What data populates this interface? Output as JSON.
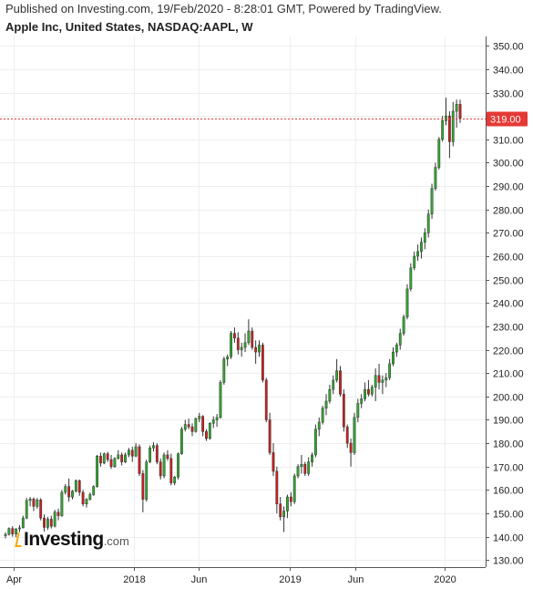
{
  "header": {
    "published": "Published on Investing.com, 19/Feb/2020 - 8:28:01 GMT, Powered by TradingView.",
    "symbol": "Apple Inc, United States, NASDAQ:AAPL, W"
  },
  "logo": {
    "brand": "Investing",
    "suffix": ".com"
  },
  "last_price_label": "319.00",
  "colors": {
    "up": "#2eaa2e",
    "down": "#cc1f1f",
    "price_line": "#e53935",
    "grid": "#eeeeee",
    "axis": "#555555"
  },
  "chart_data": {
    "type": "candlestick",
    "title": "Apple Inc, United States, NASDAQ:AAPL, W",
    "timeframe": "W",
    "ylim": [
      127,
      354
    ],
    "y_ticks": [
      130,
      140,
      150,
      160,
      170,
      180,
      190,
      200,
      210,
      220,
      230,
      240,
      250,
      260,
      270,
      280,
      290,
      300,
      310,
      320,
      330,
      340,
      350
    ],
    "x_ticks": [
      "Apr",
      "2018",
      "Jun",
      "2019",
      "Jun",
      "2020"
    ],
    "last_price": 319.0,
    "grid": true,
    "points": [
      [
        140.5,
        141.8,
        139.3,
        141.0
      ],
      [
        141.0,
        144.0,
        140.5,
        143.5
      ],
      [
        143.5,
        144.5,
        140.0,
        141.2
      ],
      [
        141.2,
        143.6,
        139.8,
        143.4
      ],
      [
        143.4,
        145.0,
        142.0,
        143.8
      ],
      [
        143.8,
        149.0,
        143.6,
        148.0
      ],
      [
        148.0,
        156.6,
        147.5,
        155.5
      ],
      [
        155.5,
        157.0,
        153.0,
        156.1
      ],
      [
        156.1,
        156.8,
        151.0,
        153.0
      ],
      [
        153.0,
        156.5,
        152.0,
        155.8
      ],
      [
        155.8,
        156.5,
        147.0,
        148.0
      ],
      [
        148.0,
        149.5,
        142.2,
        144.0
      ],
      [
        144.0,
        148.5,
        143.0,
        147.5
      ],
      [
        147.5,
        149.0,
        143.5,
        144.5
      ],
      [
        144.5,
        151.5,
        144.0,
        150.5
      ],
      [
        150.5,
        152.0,
        147.0,
        149.0
      ],
      [
        149.0,
        160.0,
        148.5,
        159.0
      ],
      [
        159.0,
        162.5,
        158.0,
        161.5
      ],
      [
        161.5,
        164.9,
        155.0,
        157.0
      ],
      [
        157.0,
        160.0,
        156.0,
        159.5
      ],
      [
        159.5,
        164.5,
        159.0,
        164.0
      ],
      [
        164.0,
        164.5,
        157.5,
        159.0
      ],
      [
        159.0,
        160.0,
        153.0,
        154.0
      ],
      [
        154.0,
        156.5,
        152.5,
        156.0
      ],
      [
        156.0,
        159.0,
        155.5,
        158.0
      ],
      [
        158.0,
        162.0,
        157.5,
        161.5
      ],
      [
        161.5,
        175.0,
        161.0,
        174.5
      ],
      [
        174.5,
        176.0,
        170.0,
        171.5
      ],
      [
        171.5,
        176.0,
        171.0,
        175.5
      ],
      [
        175.5,
        176.3,
        172.0,
        173.0
      ],
      [
        173.0,
        175.0,
        169.0,
        170.0
      ],
      [
        170.0,
        174.0,
        169.5,
        173.5
      ],
      [
        173.5,
        177.0,
        173.0,
        175.0
      ],
      [
        175.0,
        176.0,
        170.5,
        172.0
      ],
      [
        172.0,
        176.0,
        171.5,
        175.0
      ],
      [
        175.0,
        178.0,
        174.0,
        177.0
      ],
      [
        177.0,
        178.5,
        172.0,
        174.5
      ],
      [
        174.5,
        180.0,
        174.0,
        178.5
      ],
      [
        178.5,
        179.5,
        166.0,
        167.0
      ],
      [
        167.0,
        168.5,
        150.4,
        156.0
      ],
      [
        156.0,
        173.0,
        155.0,
        172.0
      ],
      [
        172.0,
        179.0,
        171.5,
        178.0
      ],
      [
        178.0,
        180.5,
        176.5,
        179.0
      ],
      [
        179.0,
        180.0,
        171.0,
        172.0
      ],
      [
        172.0,
        173.5,
        164.5,
        166.0
      ],
      [
        166.0,
        176.0,
        165.0,
        175.0
      ],
      [
        175.0,
        177.0,
        172.5,
        173.5
      ],
      [
        173.5,
        175.5,
        162.0,
        163.0
      ],
      [
        163.0,
        166.0,
        162.0,
        165.5
      ],
      [
        165.5,
        176.0,
        164.5,
        175.5
      ],
      [
        175.5,
        187.0,
        175.0,
        186.0
      ],
      [
        186.0,
        190.0,
        185.0,
        188.0
      ],
      [
        188.0,
        190.5,
        186.0,
        187.0
      ],
      [
        187.0,
        188.5,
        183.0,
        185.0
      ],
      [
        185.0,
        191.0,
        184.5,
        190.5
      ],
      [
        190.5,
        193.0,
        189.0,
        191.5
      ],
      [
        191.5,
        192.0,
        183.0,
        185.0
      ],
      [
        185.0,
        186.0,
        181.0,
        182.0
      ],
      [
        182.0,
        189.0,
        181.5,
        188.5
      ],
      [
        188.5,
        191.5,
        186.5,
        190.0
      ],
      [
        190.0,
        192.5,
        187.0,
        191.0
      ],
      [
        191.0,
        207.0,
        190.5,
        206.0
      ],
      [
        206.0,
        217.0,
        205.0,
        216.0
      ],
      [
        216.0,
        218.0,
        213.0,
        217.0
      ],
      [
        217.0,
        228.0,
        216.0,
        227.0
      ],
      [
        227.0,
        229.5,
        223.0,
        225.0
      ],
      [
        225.0,
        227.5,
        218.0,
        220.0
      ],
      [
        220.0,
        223.0,
        217.0,
        221.0
      ],
      [
        221.0,
        227.0,
        219.0,
        223.0
      ],
      [
        223.0,
        233.0,
        222.0,
        228.0
      ],
      [
        228.0,
        229.5,
        220.0,
        221.0
      ],
      [
        221.0,
        224.0,
        214.0,
        219.0
      ],
      [
        219.0,
        224.0,
        217.0,
        222.0
      ],
      [
        222.0,
        223.0,
        206.0,
        207.0
      ],
      [
        207.0,
        208.0,
        189.0,
        190.0
      ],
      [
        190.0,
        193.0,
        175.0,
        176.0
      ],
      [
        176.0,
        180.0,
        166.0,
        168.0
      ],
      [
        168.0,
        170.0,
        150.0,
        154.0
      ],
      [
        154.0,
        157.0,
        147.0,
        148.5
      ],
      [
        148.5,
        153.0,
        142.0,
        151.0
      ],
      [
        151.0,
        158.0,
        148.0,
        157.0
      ],
      [
        157.0,
        159.0,
        153.0,
        155.0
      ],
      [
        155.0,
        167.0,
        154.0,
        166.0
      ],
      [
        166.0,
        171.0,
        165.0,
        170.0
      ],
      [
        170.0,
        175.0,
        167.0,
        171.0
      ],
      [
        171.0,
        172.0,
        166.0,
        167.0
      ],
      [
        167.0,
        174.0,
        166.0,
        172.0
      ],
      [
        172.0,
        176.0,
        170.0,
        175.0
      ],
      [
        175.0,
        188.0,
        174.0,
        186.0
      ],
      [
        186.0,
        191.0,
        183.0,
        189.0
      ],
      [
        189.0,
        196.0,
        188.0,
        195.0
      ],
      [
        195.0,
        201.0,
        192.0,
        198.0
      ],
      [
        198.0,
        205.0,
        197.0,
        203.0
      ],
      [
        203.0,
        209.0,
        201.0,
        207.0
      ],
      [
        207.0,
        216.0,
        206.0,
        211.0
      ],
      [
        211.0,
        213.0,
        200.0,
        201.0
      ],
      [
        201.0,
        203.0,
        185.0,
        187.0
      ],
      [
        187.0,
        188.0,
        178.0,
        180.0
      ],
      [
        180.0,
        182.0,
        170.0,
        176.0
      ],
      [
        176.0,
        193.0,
        175.0,
        191.0
      ],
      [
        191.0,
        199.0,
        189.0,
        197.0
      ],
      [
        197.0,
        201.0,
        195.0,
        199.0
      ],
      [
        199.0,
        206.0,
        198.0,
        203.0
      ],
      [
        203.0,
        207.0,
        200.0,
        201.0
      ],
      [
        201.0,
        205.0,
        200.0,
        204.0
      ],
      [
        204.0,
        212.0,
        198.0,
        209.0
      ],
      [
        209.0,
        214.0,
        203.0,
        206.0
      ],
      [
        206.0,
        209.0,
        201.0,
        207.0
      ],
      [
        207.0,
        210.0,
        204.0,
        208.0
      ],
      [
        208.0,
        216.0,
        207.0,
        214.0
      ],
      [
        214.0,
        221.0,
        213.0,
        219.0
      ],
      [
        219.0,
        223.0,
        217.0,
        222.0
      ],
      [
        222.0,
        229.0,
        220.0,
        227.0
      ],
      [
        227.0,
        235.0,
        226.0,
        234.0
      ],
      [
        234.0,
        248.0,
        233.0,
        246.0
      ],
      [
        246.0,
        257.0,
        245.0,
        255.0
      ],
      [
        255.0,
        262.0,
        254.0,
        260.0
      ],
      [
        260.0,
        265.0,
        258.0,
        262.0
      ],
      [
        262.0,
        268.0,
        259.0,
        266.0
      ],
      [
        266.0,
        272.0,
        263.0,
        270.0
      ],
      [
        270.0,
        280.0,
        268.0,
        278.0
      ],
      [
        278.0,
        291.0,
        276.0,
        289.0
      ],
      [
        289.0,
        300.0,
        288.0,
        298.0
      ],
      [
        298.0,
        311.0,
        297.0,
        310.0
      ],
      [
        310.0,
        320.0,
        309.0,
        318.0
      ],
      [
        318.0,
        327.8,
        316.0,
        320.0
      ],
      [
        320.0,
        322.0,
        302.0,
        309.0
      ],
      [
        309.0,
        326.0,
        307.0,
        322.0
      ],
      [
        322.0,
        327.0,
        315.0,
        325.0
      ],
      [
        325.0,
        327.0,
        317.0,
        319.0
      ]
    ]
  }
}
